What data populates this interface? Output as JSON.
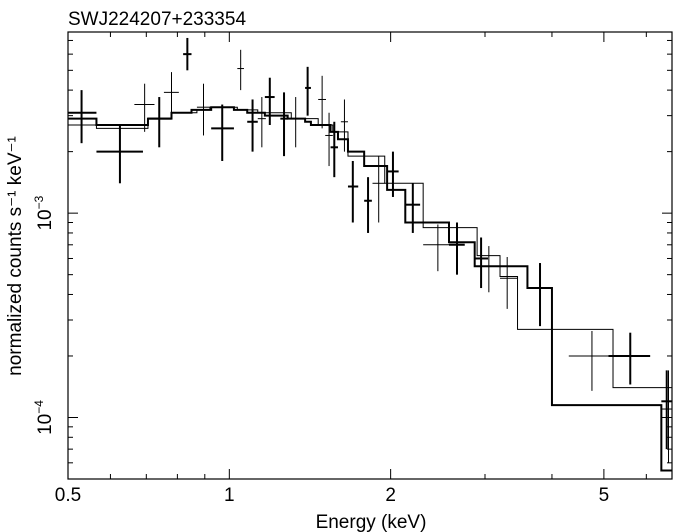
{
  "chart_data": {
    "type": "scatter",
    "title": "SWJ224207+233354",
    "xlabel": "Energy (keV)",
    "ylabel": "normalized counts s⁻¹ keV⁻¹",
    "x_scale": "log",
    "y_scale": "log",
    "xlim": [
      0.5,
      6.7
    ],
    "ylim": [
      5e-05,
      0.0077
    ],
    "x_tick_labels": [
      "0.5",
      "1",
      "2",
      "5"
    ],
    "x_ticks": [
      0.5,
      1,
      2,
      5
    ],
    "y_tick_labels": [
      {
        "base": "10",
        "exp": "−4",
        "value": 0.0001
      },
      {
        "base": "10",
        "exp": "−3",
        "value": 0.001
      }
    ],
    "grid": false,
    "series": [
      {
        "style": "thick",
        "points": [
          {
            "x": 0.53,
            "xerr": [
              0.5,
              0.565
            ],
            "y": 0.0031,
            "yerr": [
              0.0022,
              0.004
            ]
          },
          {
            "x": 0.625,
            "xerr": [
              0.565,
              0.69
            ],
            "y": 0.002,
            "yerr": [
              0.0014,
              0.0027
            ]
          },
          {
            "x": 0.74,
            "xerr": [
              0.705,
              0.78
            ],
            "y": 0.0029,
            "yerr": [
              0.0021,
              0.0037
            ]
          },
          {
            "x": 0.835,
            "xerr": [
              0.82,
              0.85
            ],
            "y": 0.006,
            "yerr": [
              0.005,
              0.0072
            ]
          },
          {
            "x": 0.97,
            "xerr": [
              0.925,
              1.02
            ],
            "y": 0.0026,
            "yerr": [
              0.0018,
              0.0034
            ]
          },
          {
            "x": 1.105,
            "xerr": [
              1.08,
              1.13
            ],
            "y": 0.0028,
            "yerr": [
              0.002,
              0.0036
            ]
          },
          {
            "x": 1.19,
            "xerr": [
              1.165,
              1.215
            ],
            "y": 0.0037,
            "yerr": [
              0.0027,
              0.0046
            ]
          },
          {
            "x": 1.265,
            "xerr": [
              1.245,
              1.285
            ],
            "y": 0.0029,
            "yerr": [
              0.0019,
              0.0039
            ]
          },
          {
            "x": 1.4,
            "xerr": [
              1.385,
              1.42
            ],
            "y": 0.0041,
            "yerr": [
              0.003,
              0.0052
            ]
          },
          {
            "x": 1.57,
            "xerr": [
              1.545,
              1.595
            ],
            "y": 0.0021,
            "yerr": [
              0.0015,
              0.0028
            ]
          },
          {
            "x": 1.7,
            "xerr": [
              1.665,
              1.74
            ],
            "y": 0.00135,
            "yerr": [
              0.0009,
              0.0018
            ]
          },
          {
            "x": 1.815,
            "xerr": [
              1.785,
              1.845
            ],
            "y": 0.00115,
            "yerr": [
              0.0008,
              0.0015
            ]
          },
          {
            "x": 2.02,
            "xerr": [
              1.97,
              2.07
            ],
            "y": 0.0016,
            "yerr": [
              0.0012,
              0.002
            ]
          },
          {
            "x": 2.2,
            "xerr": [
              2.13,
              2.27
            ],
            "y": 0.0011,
            "yerr": [
              0.0008,
              0.0014
            ]
          },
          {
            "x": 2.66,
            "xerr": [
              2.57,
              2.75
            ],
            "y": 0.0007,
            "yerr": [
              0.0005,
              0.0009
            ]
          },
          {
            "x": 2.95,
            "xerr": [
              2.87,
              3.04
            ],
            "y": 0.0006,
            "yerr": [
              0.00043,
              0.00076
            ]
          },
          {
            "x": 3.8,
            "xerr": [
              3.6,
              4.0
            ],
            "y": 0.00043,
            "yerr": [
              0.00028,
              0.00057
            ]
          },
          {
            "x": 5.6,
            "xerr": [
              5.1,
              6.1
            ],
            "y": 0.0002,
            "yerr": [
              0.000145,
              0.00026
            ]
          },
          {
            "x": 6.55,
            "xerr": [
              6.4,
              6.7
            ],
            "y": 0.00012,
            "yerr": [
              7e-05,
              0.00017
            ]
          }
        ]
      },
      {
        "style": "thin",
        "points": [
          {
            "x": 0.695,
            "xerr": [
              0.665,
              0.725
            ],
            "y": 0.0034,
            "yerr": [
              0.0025,
              0.0043
            ]
          },
          {
            "x": 0.78,
            "xerr": [
              0.755,
              0.805
            ],
            "y": 0.0039,
            "yerr": [
              0.003,
              0.0049
            ]
          },
          {
            "x": 0.895,
            "xerr": [
              0.87,
              0.92
            ],
            "y": 0.0033,
            "yerr": [
              0.0024,
              0.0043
            ]
          },
          {
            "x": 1.05,
            "xerr": [
              1.035,
              1.065
            ],
            "y": 0.0051,
            "yerr": [
              0.004,
              0.0063
            ]
          },
          {
            "x": 1.15,
            "xerr": [
              1.13,
              1.17
            ],
            "y": 0.0029,
            "yerr": [
              0.0021,
              0.0037
            ]
          },
          {
            "x": 1.33,
            "xerr": [
              1.305,
              1.355
            ],
            "y": 0.0029,
            "yerr": [
              0.0021,
              0.0037
            ]
          },
          {
            "x": 1.49,
            "xerr": [
              1.465,
              1.515
            ],
            "y": 0.0036,
            "yerr": [
              0.0026,
              0.0047
            ]
          },
          {
            "x": 1.535,
            "xerr": [
              1.51,
              1.56
            ],
            "y": 0.0024,
            "yerr": [
              0.0017,
              0.0031
            ]
          },
          {
            "x": 1.64,
            "xerr": [
              1.615,
              1.665
            ],
            "y": 0.0028,
            "yerr": [
              0.002,
              0.0036
            ]
          },
          {
            "x": 1.9,
            "xerr": [
              1.85,
              1.95
            ],
            "y": 0.0014,
            "yerr": [
              0.0009,
              0.0019
            ]
          },
          {
            "x": 2.45,
            "xerr": [
              2.3,
              2.6
            ],
            "y": 0.0007,
            "yerr": [
              0.00052,
              0.00088
            ]
          },
          {
            "x": 3.05,
            "xerr": [
              2.9,
              3.2
            ],
            "y": 0.00055,
            "yerr": [
              0.00041,
              0.00069
            ]
          },
          {
            "x": 3.3,
            "xerr": [
              3.2,
              3.45
            ],
            "y": 0.00048,
            "yerr": [
              0.00034,
              0.00061
            ]
          },
          {
            "x": 4.75,
            "xerr": [
              4.3,
              5.2
            ],
            "y": 0.0002,
            "yerr": [
              0.000135,
              0.000265
            ]
          },
          {
            "x": 6.6,
            "xerr": [
              6.4,
              6.7
            ],
            "y": 0.00011,
            "yerr": [
              6e-05,
              0.00017
            ]
          }
        ]
      }
    ],
    "models": [
      {
        "style": "thick",
        "steps": [
          {
            "x0": 0.5,
            "x1": 0.565,
            "y": 0.0029
          },
          {
            "x0": 0.565,
            "x1": 0.705,
            "y": 0.0027
          },
          {
            "x0": 0.705,
            "x1": 0.78,
            "y": 0.0029
          },
          {
            "x0": 0.78,
            "x1": 0.85,
            "y": 0.0031
          },
          {
            "x0": 0.85,
            "x1": 0.925,
            "y": 0.0032
          },
          {
            "x0": 0.925,
            "x1": 1.02,
            "y": 0.0033
          },
          {
            "x0": 1.02,
            "x1": 1.08,
            "y": 0.0032
          },
          {
            "x0": 1.08,
            "x1": 1.13,
            "y": 0.0031
          },
          {
            "x0": 1.13,
            "x1": 1.165,
            "y": 0.0031
          },
          {
            "x0": 1.165,
            "x1": 1.215,
            "y": 0.003
          },
          {
            "x0": 1.215,
            "x1": 1.285,
            "y": 0.003
          },
          {
            "x0": 1.285,
            "x1": 1.385,
            "y": 0.0029
          },
          {
            "x0": 1.385,
            "x1": 1.42,
            "y": 0.0028
          },
          {
            "x0": 1.42,
            "x1": 1.545,
            "y": 0.0027
          },
          {
            "x0": 1.545,
            "x1": 1.595,
            "y": 0.0025
          },
          {
            "x0": 1.595,
            "x1": 1.665,
            "y": 0.0023
          },
          {
            "x0": 1.665,
            "x1": 1.785,
            "y": 0.002
          },
          {
            "x0": 1.785,
            "x1": 1.97,
            "y": 0.0017
          },
          {
            "x0": 1.97,
            "x1": 2.13,
            "y": 0.0013
          },
          {
            "x0": 2.13,
            "x1": 2.57,
            "y": 0.0009
          },
          {
            "x0": 2.57,
            "x1": 2.87,
            "y": 0.00072
          },
          {
            "x0": 2.87,
            "x1": 3.6,
            "y": 0.00055
          },
          {
            "x0": 3.6,
            "x1": 4.0,
            "y": 0.00043
          },
          {
            "x0": 4.0,
            "x1": 5.1,
            "y": 0.000115
          },
          {
            "x0": 5.1,
            "x1": 6.4,
            "y": 0.000115
          },
          {
            "x0": 6.4,
            "x1": 6.7,
            "y": 5.5e-05
          }
        ]
      },
      {
        "style": "thin",
        "steps": [
          {
            "x0": 0.5,
            "x1": 0.565,
            "y": 0.0027
          },
          {
            "x0": 0.565,
            "x1": 0.705,
            "y": 0.0026
          },
          {
            "x0": 0.705,
            "x1": 0.78,
            "y": 0.0029
          },
          {
            "x0": 0.78,
            "x1": 0.87,
            "y": 0.0031
          },
          {
            "x0": 0.87,
            "x1": 0.92,
            "y": 0.0032
          },
          {
            "x0": 0.92,
            "x1": 1.035,
            "y": 0.0033
          },
          {
            "x0": 1.035,
            "x1": 1.13,
            "y": 0.0032
          },
          {
            "x0": 1.13,
            "x1": 1.305,
            "y": 0.0031
          },
          {
            "x0": 1.305,
            "x1": 1.465,
            "y": 0.0029
          },
          {
            "x0": 1.465,
            "x1": 1.56,
            "y": 0.0027
          },
          {
            "x0": 1.56,
            "x1": 1.665,
            "y": 0.0025
          },
          {
            "x0": 1.665,
            "x1": 1.95,
            "y": 0.0019
          },
          {
            "x0": 1.95,
            "x1": 2.3,
            "y": 0.0014
          },
          {
            "x0": 2.3,
            "x1": 2.9,
            "y": 0.00085
          },
          {
            "x0": 2.9,
            "x1": 3.2,
            "y": 0.00062
          },
          {
            "x0": 3.2,
            "x1": 3.45,
            "y": 0.00049
          },
          {
            "x0": 3.45,
            "x1": 4.3,
            "y": 0.00027
          },
          {
            "x0": 4.3,
            "x1": 5.2,
            "y": 0.00027
          },
          {
            "x0": 5.2,
            "x1": 6.4,
            "y": 0.00014
          },
          {
            "x0": 6.4,
            "x1": 6.7,
            "y": 0.00014
          }
        ]
      }
    ]
  }
}
